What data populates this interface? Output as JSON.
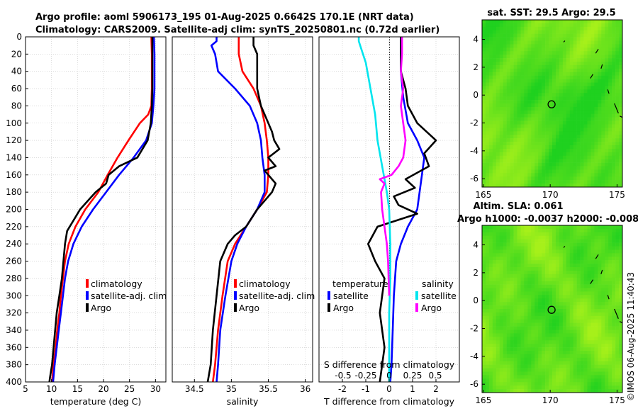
{
  "title_line1": "Argo profile: aoml 5906173_195 01-Aug-2025 0.6642S 170.1E (NRT data)",
  "title_line2": "Climatology: CARS2009. Satellite-adj clim: synTS_20250801.nc (0.72d earlier)",
  "timestamp": "©IMOS 06-Aug-2025 11:40:43",
  "colors": {
    "climatology": "#ff0000",
    "satellite": "#0000ff",
    "argo": "#000000",
    "sal_sat": "#00e5ee",
    "sal_argo": "#ff00ff",
    "grid": "#c8c8c8",
    "map_light": "#a6f01a",
    "map_dark": "#1fd11f"
  },
  "depth_ticks": [
    "0",
    "20",
    "40",
    "60",
    "80",
    "100",
    "120",
    "140",
    "160",
    "180",
    "200",
    "220",
    "240",
    "260",
    "280",
    "300",
    "320",
    "340",
    "360",
    "380",
    "400"
  ],
  "chart_data": [
    {
      "type": "line",
      "title": "",
      "xlabel": "temperature (deg C)",
      "ylabel": "",
      "xlim": [
        5,
        32
      ],
      "ylim": [
        0,
        400
      ],
      "xticks": [
        5,
        10,
        15,
        20,
        25,
        30
      ],
      "legend": [
        "climatology",
        "satellite-adj. clim",
        "Argo"
      ],
      "series": [
        {
          "name": "climatology",
          "color": "#ff0000",
          "points": [
            [
              29.2,
              0
            ],
            [
              29.3,
              20
            ],
            [
              29.3,
              40
            ],
            [
              29.3,
              60
            ],
            [
              29.2,
              80
            ],
            [
              28.6,
              90
            ],
            [
              27.0,
              100
            ],
            [
              24.8,
              120
            ],
            [
              22.7,
              140
            ],
            [
              20.8,
              160
            ],
            [
              19.0,
              180
            ],
            [
              16.5,
              200
            ],
            [
              14.6,
              220
            ],
            [
              13.3,
              240
            ],
            [
              12.6,
              260
            ],
            [
              12.2,
              280
            ],
            [
              11.8,
              300
            ],
            [
              11.5,
              320
            ],
            [
              11.1,
              340
            ],
            [
              10.8,
              360
            ],
            [
              10.4,
              380
            ],
            [
              10.1,
              400
            ]
          ]
        },
        {
          "name": "satellite-adj. clim",
          "color": "#0000ff",
          "points": [
            [
              29.7,
              0
            ],
            [
              29.8,
              20
            ],
            [
              29.8,
              40
            ],
            [
              29.8,
              60
            ],
            [
              29.6,
              80
            ],
            [
              29.3,
              100
            ],
            [
              28.2,
              120
            ],
            [
              25.8,
              140
            ],
            [
              23.0,
              160
            ],
            [
              20.5,
              180
            ],
            [
              18.0,
              200
            ],
            [
              15.8,
              220
            ],
            [
              14.2,
              240
            ],
            [
              13.2,
              260
            ],
            [
              12.6,
              280
            ],
            [
              12.2,
              300
            ],
            [
              11.8,
              320
            ],
            [
              11.4,
              340
            ],
            [
              11.0,
              360
            ],
            [
              10.6,
              380
            ],
            [
              10.3,
              400
            ]
          ]
        },
        {
          "name": "Argo",
          "color": "#000000",
          "points": [
            [
              29.4,
              0
            ],
            [
              29.4,
              30
            ],
            [
              29.4,
              60
            ],
            [
              29.3,
              80
            ],
            [
              29.1,
              100
            ],
            [
              28.5,
              120
            ],
            [
              26.5,
              140
            ],
            [
              23.0,
              150
            ],
            [
              21.0,
              160
            ],
            [
              20.5,
              170
            ],
            [
              18.5,
              180
            ],
            [
              17.0,
              190
            ],
            [
              15.5,
              200
            ],
            [
              14.0,
              215
            ],
            [
              13.0,
              225
            ],
            [
              12.6,
              240
            ],
            [
              12.3,
              260
            ],
            [
              12.0,
              280
            ],
            [
              11.5,
              300
            ],
            [
              11.0,
              320
            ],
            [
              10.7,
              340
            ],
            [
              10.4,
              360
            ],
            [
              10.1,
              380
            ],
            [
              9.7,
              395
            ],
            [
              9.6,
              400
            ]
          ]
        }
      ]
    },
    {
      "type": "line",
      "title": "",
      "xlabel": "salinity",
      "ylabel": "",
      "xlim": [
        34.2,
        36.1
      ],
      "ylim": [
        0,
        400
      ],
      "xticks": [
        34.5,
        35,
        35.5,
        36
      ],
      "legend": [
        "climatology",
        "satellite-adj. clim",
        "Argo"
      ],
      "series": [
        {
          "name": "climatology",
          "color": "#ff0000",
          "points": [
            [
              35.1,
              0
            ],
            [
              35.1,
              20
            ],
            [
              35.15,
              40
            ],
            [
              35.3,
              60
            ],
            [
              35.4,
              80
            ],
            [
              35.45,
              100
            ],
            [
              35.48,
              120
            ],
            [
              35.5,
              140
            ],
            [
              35.5,
              160
            ],
            [
              35.48,
              180
            ],
            [
              35.35,
              200
            ],
            [
              35.2,
              220
            ],
            [
              35.05,
              240
            ],
            [
              34.95,
              260
            ],
            [
              34.88,
              300
            ],
            [
              34.82,
              340
            ],
            [
              34.78,
              380
            ],
            [
              34.75,
              400
            ]
          ]
        },
        {
          "name": "satellite-adj. clim",
          "color": "#0000ff",
          "points": [
            [
              34.8,
              0
            ],
            [
              34.8,
              5
            ],
            [
              34.73,
              10
            ],
            [
              34.78,
              20
            ],
            [
              34.82,
              40
            ],
            [
              35.05,
              60
            ],
            [
              35.25,
              80
            ],
            [
              35.35,
              100
            ],
            [
              35.4,
              120
            ],
            [
              35.42,
              140
            ],
            [
              35.45,
              160
            ],
            [
              35.45,
              180
            ],
            [
              35.35,
              200
            ],
            [
              35.2,
              220
            ],
            [
              35.08,
              240
            ],
            [
              35.0,
              260
            ],
            [
              34.92,
              300
            ],
            [
              34.85,
              340
            ],
            [
              34.82,
              380
            ],
            [
              34.8,
              400
            ]
          ]
        },
        {
          "name": "Argo",
          "color": "#000000",
          "points": [
            [
              35.3,
              0
            ],
            [
              35.3,
              10
            ],
            [
              35.35,
              20
            ],
            [
              35.35,
              40
            ],
            [
              35.35,
              60
            ],
            [
              35.4,
              80
            ],
            [
              35.5,
              100
            ],
            [
              35.55,
              110
            ],
            [
              35.58,
              120
            ],
            [
              35.65,
              130
            ],
            [
              35.5,
              140
            ],
            [
              35.6,
              150
            ],
            [
              35.45,
              155
            ],
            [
              35.5,
              160
            ],
            [
              35.6,
              170
            ],
            [
              35.55,
              180
            ],
            [
              35.45,
              190
            ],
            [
              35.35,
              200
            ],
            [
              35.2,
              220
            ],
            [
              35.05,
              230
            ],
            [
              34.95,
              240
            ],
            [
              34.85,
              260
            ],
            [
              34.8,
              300
            ],
            [
              34.75,
              340
            ],
            [
              34.72,
              380
            ],
            [
              34.68,
              400
            ]
          ]
        }
      ]
    },
    {
      "type": "line",
      "title": "",
      "xlabel": "T difference from climatology",
      "ylabel": "",
      "xlim": [
        -3,
        3
      ],
      "ylim": [
        0,
        400
      ],
      "xticks": [
        -2,
        -1,
        0,
        1,
        2
      ],
      "xlabel_top": "S difference from climatology",
      "xticks_top": [
        "-0.5",
        "-0.25",
        "0",
        "0.25",
        "0.5"
      ],
      "legend_left_title": "temperature",
      "legend_right_title": "salinity",
      "legend": [
        "satellite",
        "Argo",
        "satellite",
        "Argo"
      ],
      "series": [
        {
          "name": "temperature satellite",
          "color": "#0000ff",
          "points": [
            [
              0.5,
              0
            ],
            [
              0.5,
              40
            ],
            [
              0.6,
              70
            ],
            [
              0.8,
              100
            ],
            [
              1.2,
              120
            ],
            [
              1.5,
              140
            ],
            [
              1.4,
              160
            ],
            [
              1.3,
              180
            ],
            [
              1.2,
              200
            ],
            [
              0.8,
              220
            ],
            [
              0.5,
              240
            ],
            [
              0.3,
              260
            ],
            [
              0.2,
              300
            ],
            [
              0.15,
              340
            ],
            [
              0.1,
              380
            ],
            [
              0.05,
              400
            ]
          ]
        },
        {
          "name": "temperature Argo",
          "color": "#000000",
          "points": [
            [
              0.5,
              0
            ],
            [
              0.5,
              40
            ],
            [
              0.7,
              60
            ],
            [
              0.8,
              80
            ],
            [
              1.2,
              100
            ],
            [
              1.6,
              110
            ],
            [
              2.0,
              120
            ],
            [
              1.5,
              135
            ],
            [
              1.7,
              150
            ],
            [
              0.7,
              165
            ],
            [
              1.1,
              175
            ],
            [
              0.2,
              185
            ],
            [
              0.4,
              195
            ],
            [
              1.2,
              205
            ],
            [
              -0.5,
              220
            ],
            [
              -0.9,
              240
            ],
            [
              -0.6,
              260
            ],
            [
              -0.2,
              280
            ],
            [
              -0.3,
              300
            ],
            [
              -0.4,
              320
            ],
            [
              -0.3,
              340
            ],
            [
              -0.2,
              360
            ],
            [
              -0.3,
              380
            ],
            [
              -0.4,
              400
            ]
          ]
        },
        {
          "name": "salinity satellite",
          "color": "#00e5ee",
          "points": [
            [
              -1.3,
              0
            ],
            [
              -1.3,
              5
            ],
            [
              -1.0,
              30
            ],
            [
              -0.8,
              60
            ],
            [
              -0.6,
              90
            ],
            [
              -0.5,
              120
            ],
            [
              -0.3,
              150
            ],
            [
              -0.1,
              180
            ],
            [
              0.0,
              200
            ],
            [
              0.05,
              240
            ],
            [
              0.05,
              280
            ],
            [
              0.0,
              320
            ],
            [
              0.0,
              360
            ],
            [
              0.0,
              400
            ]
          ]
        },
        {
          "name": "salinity Argo",
          "color": "#ff00ff",
          "points": [
            [
              0.55,
              0
            ],
            [
              0.55,
              20
            ],
            [
              0.5,
              40
            ],
            [
              0.6,
              60
            ],
            [
              0.5,
              80
            ],
            [
              0.6,
              100
            ],
            [
              0.7,
              120
            ],
            [
              0.6,
              140
            ],
            [
              0.4,
              150
            ],
            [
              0.1,
              160
            ],
            [
              -0.4,
              165
            ],
            [
              -0.2,
              170
            ],
            [
              -0.35,
              180
            ],
            [
              -0.3,
              200
            ],
            [
              -0.2,
              220
            ],
            [
              -0.1,
              240
            ],
            [
              -0.05,
              260
            ],
            [
              0.0,
              300
            ]
          ]
        }
      ]
    },
    {
      "type": "heatmap",
      "title": "sat. SST: 29.5 Argo: 29.5",
      "xlabel": "",
      "ylabel": "",
      "xlim": [
        164.9,
        175.4
      ],
      "ylim": [
        -6.6,
        5.4
      ],
      "xticks": [
        165,
        170,
        175
      ],
      "yticks": [
        4,
        2,
        0,
        -2,
        -4,
        -6
      ],
      "marker": [
        170.1,
        -0.66
      ]
    },
    {
      "type": "heatmap",
      "title": "Altim. SLA: 0.061",
      "subtitle": "Argo h1000: -0.0037 h2000: -0.008",
      "xlabel": "",
      "ylabel": "",
      "xlim": [
        164.9,
        175.4
      ],
      "ylim": [
        -6.6,
        5.4
      ],
      "xticks": [
        165,
        170,
        175
      ],
      "yticks": [
        4,
        2,
        0,
        -2,
        -4,
        -6
      ],
      "marker": [
        170.1,
        -0.66
      ]
    }
  ]
}
